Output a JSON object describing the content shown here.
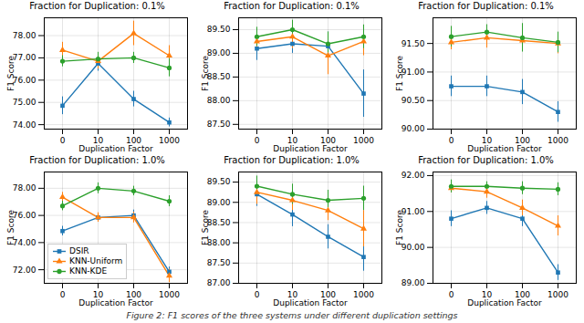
{
  "chart_data": [
    {
      "type": "line",
      "title": "Fraction for Duplication: 0.1%",
      "xlabel": "Duplication Factor",
      "ylabel": "F1 Score",
      "categories": [
        "0",
        "10",
        "100",
        "1000"
      ],
      "series": [
        {
          "name": "DSIR",
          "color": "#1f77b4",
          "marker": "square",
          "values": [
            74.85,
            76.75,
            75.15,
            74.1
          ],
          "errors": [
            0.4,
            0.35,
            0.35,
            0.2
          ]
        },
        {
          "name": "KNN-Uniform",
          "color": "#ff7f0e",
          "marker": "triangle",
          "values": [
            77.35,
            76.85,
            78.1,
            77.1
          ],
          "errors": [
            0.35,
            0.35,
            0.55,
            0.45
          ]
        },
        {
          "name": "KNN-KDE",
          "color": "#2ca02c",
          "marker": "circle",
          "values": [
            76.85,
            76.95,
            77.0,
            76.55
          ],
          "errors": [
            0.25,
            0.3,
            0.25,
            0.4
          ]
        }
      ],
      "ylim": [
        73.8,
        78.8
      ],
      "yticks": [
        {
          "value": 74.0,
          "label": "74.00"
        },
        {
          "value": 75.0,
          "label": "75.00"
        },
        {
          "value": 76.0,
          "label": "76.00"
        },
        {
          "value": 77.0,
          "label": "77.00"
        },
        {
          "value": 78.0,
          "label": "78.00"
        }
      ],
      "grid": true
    },
    {
      "type": "line",
      "title": "Fraction for Duplication: 0.1%",
      "xlabel": "Duplication Factor",
      "ylabel": "F1 Score",
      "categories": [
        "0",
        "10",
        "100",
        "1000"
      ],
      "series": [
        {
          "name": "DSIR",
          "color": "#1f77b4",
          "marker": "square",
          "values": [
            89.1,
            89.2,
            89.15,
            88.15
          ],
          "errors": [
            0.25,
            0.2,
            0.3,
            0.5
          ]
        },
        {
          "name": "KNN-Uniform",
          "color": "#ff7f0e",
          "marker": "triangle",
          "values": [
            89.25,
            89.35,
            88.95,
            89.25
          ],
          "errors": [
            0.2,
            0.25,
            0.4,
            0.3
          ]
        },
        {
          "name": "KNN-KDE",
          "color": "#2ca02c",
          "marker": "circle",
          "values": [
            89.35,
            89.5,
            89.2,
            89.35
          ],
          "errors": [
            0.2,
            0.2,
            0.25,
            0.25
          ]
        }
      ],
      "ylim": [
        87.4,
        89.75
      ],
      "yticks": [
        {
          "value": 87.5,
          "label": "87.50"
        },
        {
          "value": 88.0,
          "label": "88.00"
        },
        {
          "value": 88.5,
          "label": "88.50"
        },
        {
          "value": 89.0,
          "label": "89.00"
        },
        {
          "value": 89.5,
          "label": "89.50"
        }
      ],
      "grid": true
    },
    {
      "type": "line",
      "title": "Fraction for Duplication: 0.1%",
      "xlabel": "Duplication Factor",
      "ylabel": "F1 Score",
      "categories": [
        "0",
        "10",
        "100",
        "1000"
      ],
      "series": [
        {
          "name": "DSIR",
          "color": "#1f77b4",
          "marker": "square",
          "values": [
            90.75,
            90.75,
            90.65,
            90.3
          ],
          "errors": [
            0.18,
            0.18,
            0.22,
            0.18
          ]
        },
        {
          "name": "KNN-Uniform",
          "color": "#ff7f0e",
          "marker": "triangle",
          "values": [
            91.52,
            91.6,
            91.55,
            91.5
          ],
          "errors": [
            0.13,
            0.18,
            0.18,
            0.18
          ]
        },
        {
          "name": "KNN-KDE",
          "color": "#2ca02c",
          "marker": "circle",
          "values": [
            91.62,
            91.7,
            91.6,
            91.52
          ],
          "errors": [
            0.18,
            0.13,
            0.25,
            0.18
          ]
        }
      ],
      "ylim": [
        90.0,
        91.95
      ],
      "yticks": [
        {
          "value": 90.0,
          "label": "90.00"
        },
        {
          "value": 90.5,
          "label": "90.50"
        },
        {
          "value": 91.0,
          "label": "91.00"
        },
        {
          "value": 91.5,
          "label": "91.50"
        }
      ],
      "grid": true
    },
    {
      "type": "line",
      "title": "Fraction for Duplication: 1.0%",
      "xlabel": "Duplication Factor",
      "ylabel": "F1 Score",
      "categories": [
        "0",
        "10",
        "100",
        "1000"
      ],
      "series": [
        {
          "name": "DSIR",
          "color": "#1f77b4",
          "marker": "square",
          "values": [
            74.85,
            75.85,
            76.0,
            71.85
          ],
          "errors": [
            0.35,
            0.3,
            0.4,
            0.35
          ]
        },
        {
          "name": "KNN-Uniform",
          "color": "#ff7f0e",
          "marker": "triangle",
          "values": [
            77.35,
            75.85,
            75.85,
            71.55
          ],
          "errors": [
            0.35,
            0.35,
            0.4,
            0.5
          ]
        },
        {
          "name": "KNN-KDE",
          "color": "#2ca02c",
          "marker": "circle",
          "values": [
            76.7,
            78.0,
            77.8,
            77.05
          ],
          "errors": [
            0.35,
            0.4,
            0.35,
            0.4
          ]
        }
      ],
      "ylim": [
        71.0,
        79.2
      ],
      "yticks": [
        {
          "value": 72.0,
          "label": "72.00"
        },
        {
          "value": 74.0,
          "label": "74.00"
        },
        {
          "value": 76.0,
          "label": "76.00"
        },
        {
          "value": 78.0,
          "label": "78.00"
        }
      ],
      "grid": true,
      "legend": "lower left"
    },
    {
      "type": "line",
      "title": "Fraction for Duplication: 1.0%",
      "xlabel": "Duplication Factor",
      "ylabel": "F1 Score",
      "categories": [
        "0",
        "10",
        "100",
        "1000"
      ],
      "series": [
        {
          "name": "DSIR",
          "color": "#1f77b4",
          "marker": "square",
          "values": [
            89.2,
            88.7,
            88.15,
            87.65
          ],
          "errors": [
            0.3,
            0.3,
            0.3,
            0.35
          ]
        },
        {
          "name": "KNN-Uniform",
          "color": "#ff7f0e",
          "marker": "triangle",
          "values": [
            89.25,
            89.05,
            88.8,
            88.35
          ],
          "errors": [
            0.3,
            0.25,
            0.25,
            0.45
          ]
        },
        {
          "name": "KNN-KDE",
          "color": "#2ca02c",
          "marker": "circle",
          "values": [
            89.4,
            89.2,
            89.05,
            89.1
          ],
          "errors": [
            0.25,
            0.25,
            0.25,
            0.3
          ]
        }
      ],
      "ylim": [
        87.0,
        89.75
      ],
      "yticks": [
        {
          "value": 87.0,
          "label": "87.00"
        },
        {
          "value": 87.5,
          "label": "87.50"
        },
        {
          "value": 88.0,
          "label": "88.00"
        },
        {
          "value": 88.5,
          "label": "88.50"
        },
        {
          "value": 89.0,
          "label": "89.00"
        },
        {
          "value": 89.5,
          "label": "89.50"
        }
      ],
      "grid": true
    },
    {
      "type": "line",
      "title": "Fraction for Duplication: 1.0%",
      "xlabel": "Duplication Factor",
      "ylabel": "F1 Score",
      "categories": [
        "0",
        "10",
        "100",
        "1000"
      ],
      "series": [
        {
          "name": "DSIR",
          "color": "#1f77b4",
          "marker": "square",
          "values": [
            90.8,
            91.1,
            90.8,
            89.3
          ],
          "errors": [
            0.22,
            0.18,
            0.22,
            0.22
          ]
        },
        {
          "name": "KNN-Uniform",
          "color": "#ff7f0e",
          "marker": "triangle",
          "values": [
            91.65,
            91.55,
            91.1,
            90.6
          ],
          "errors": [
            0.13,
            0.18,
            0.22,
            0.28
          ]
        },
        {
          "name": "KNN-KDE",
          "color": "#2ca02c",
          "marker": "circle",
          "values": [
            91.7,
            91.7,
            91.65,
            91.62
          ],
          "errors": [
            0.18,
            0.13,
            0.18,
            0.18
          ]
        }
      ],
      "ylim": [
        89.0,
        92.1
      ],
      "yticks": [
        {
          "value": 89.0,
          "label": "89.00"
        },
        {
          "value": 90.0,
          "label": "90.00"
        },
        {
          "value": 91.0,
          "label": "91.00"
        },
        {
          "value": 92.0,
          "label": "92.00"
        }
      ],
      "grid": true
    }
  ],
  "caption": "Figure 2: F1 scores of the three systems under different duplication settings"
}
